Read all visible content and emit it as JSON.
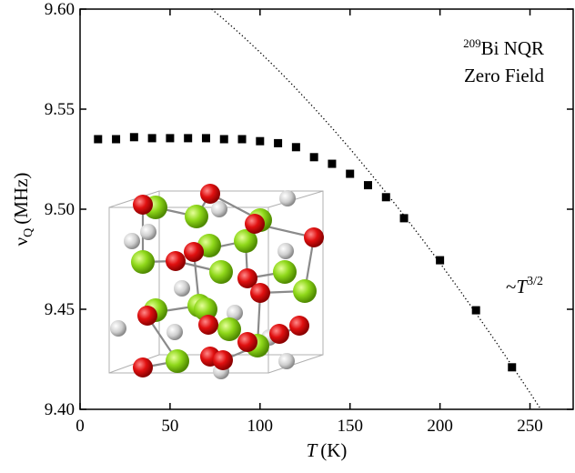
{
  "chart_data": {
    "type": "scatter",
    "x_label": {
      "symbol": "T",
      "unit": "(K)"
    },
    "y_label": {
      "symbol": "ν",
      "subscript": "Q",
      "unit": "(MHz)"
    },
    "annotation_title": {
      "superscript": "209",
      "text": "Bi NQR"
    },
    "annotation_subtitle": "Zero Field",
    "fit_label": {
      "prefix": "~",
      "symbol": "T",
      "superscript": "3/2"
    },
    "xlim": [
      0,
      274
    ],
    "ylim": [
      9.4,
      9.6
    ],
    "xticks": [
      0,
      50,
      100,
      150,
      200,
      250
    ],
    "yticks": [
      {
        "value": 9.4,
        "label": "9.40"
      },
      {
        "value": 9.45,
        "label": "9.45"
      },
      {
        "value": 9.5,
        "label": "9.50"
      },
      {
        "value": 9.55,
        "label": "9.55"
      },
      {
        "value": 9.6,
        "label": "9.60"
      }
    ],
    "series": [
      {
        "mode": "markers",
        "marker": "square",
        "color": "#000000",
        "x": [
          10,
          20,
          30,
          40,
          50,
          60,
          70,
          80,
          90,
          100,
          110,
          120,
          130,
          140,
          150,
          160,
          170,
          180,
          200,
          220,
          240
        ],
        "values": [
          9.535,
          9.535,
          9.536,
          9.5355,
          9.5355,
          9.5355,
          9.5355,
          9.535,
          9.535,
          9.534,
          9.533,
          9.531,
          9.526,
          9.5227,
          9.5177,
          9.512,
          9.506,
          9.4955,
          9.4745,
          9.4495,
          9.421
        ]
      },
      {
        "mode": "line",
        "line": "dotted",
        "color": "#000000",
        "x": [
          70,
          80,
          90,
          100,
          110,
          120,
          130,
          140,
          150,
          160,
          170,
          180,
          190,
          200,
          210,
          220,
          230,
          240,
          250,
          260
        ],
        "values": [
          9.6023,
          9.5948,
          9.5868,
          9.5784,
          9.5696,
          9.5603,
          9.5506,
          9.5406,
          9.5302,
          9.5194,
          9.5083,
          9.4969,
          9.4852,
          9.4731,
          9.4607,
          9.448,
          9.4351,
          9.4218,
          9.4083,
          9.3945
        ]
      }
    ]
  }
}
